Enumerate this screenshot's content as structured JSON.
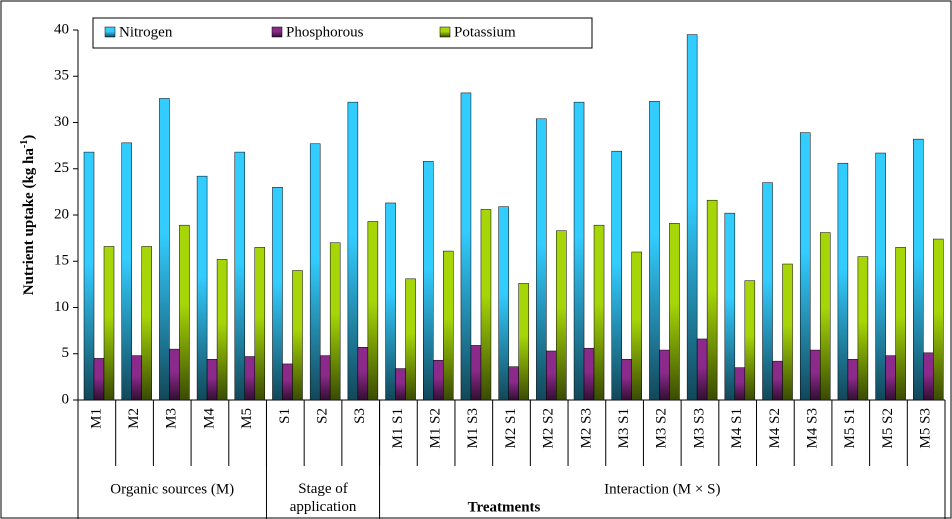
{
  "chart_data": {
    "type": "bar",
    "y_label": {
      "text": "Nutrient uptake (kg ha",
      "superscript": "-1",
      "end": ")"
    },
    "x_label": "Treatments",
    "categories": [
      "M1",
      "M2",
      "M3",
      "M4",
      "M5",
      "S1",
      "S2",
      "S3",
      "M1 S1",
      "M1 S2",
      "M1 S3",
      "M2 S1",
      "M2 S2",
      "M2 S3",
      "M3 S1",
      "M3 S2",
      "M3 S3",
      "M4 S1",
      "M4 S2",
      "M4 S3",
      "M5 S1",
      "M5 S2",
      "M5 S3"
    ],
    "groups": [
      {
        "label": "Organic sources (M)",
        "span": 5
      },
      {
        "label": "Stage of application",
        "span": 3
      },
      {
        "label": "Interaction (M × S)",
        "span": 15
      }
    ],
    "series": [
      {
        "name": "Nitrogen",
        "color": "#33ccff",
        "values": [
          26.8,
          27.8,
          32.6,
          24.2,
          26.8,
          23.0,
          27.7,
          32.2,
          21.3,
          25.8,
          33.2,
          20.9,
          30.4,
          32.2,
          26.9,
          32.3,
          39.5,
          20.2,
          23.5,
          28.9,
          25.6,
          26.7,
          28.2
        ]
      },
      {
        "name": "Phosphorous",
        "color": "#8b2a8b",
        "values": [
          4.5,
          4.8,
          5.5,
          4.4,
          4.7,
          3.9,
          4.8,
          5.7,
          3.4,
          4.3,
          5.9,
          3.6,
          5.3,
          5.6,
          4.4,
          5.4,
          6.6,
          3.5,
          4.2,
          5.4,
          4.4,
          4.8,
          5.1
        ]
      },
      {
        "name": "Potassium",
        "color": "#a6d608",
        "values": [
          16.6,
          16.6,
          18.9,
          15.2,
          16.5,
          14.0,
          17.0,
          19.3,
          13.1,
          16.1,
          20.6,
          12.6,
          18.3,
          18.9,
          16.0,
          19.1,
          21.6,
          12.9,
          14.7,
          18.1,
          15.5,
          16.5,
          17.4
        ]
      }
    ],
    "ylim": [
      0,
      40
    ],
    "yticks": [
      0,
      5,
      10,
      15,
      20,
      25,
      30,
      35,
      40
    ],
    "grid": false,
    "legend": "top"
  }
}
